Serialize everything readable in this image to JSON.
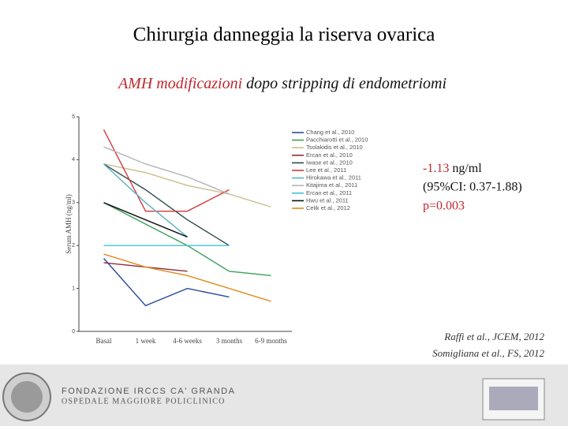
{
  "title": "Chirurgia danneggia la riserva ovarica",
  "subtitle": {
    "highlight": "AMH modificazioni",
    "rest": "dopo stripping di endometriomi"
  },
  "chart_data": {
    "type": "line",
    "y_label": "Serum AMH (ng/ml)",
    "categories": [
      "Basal",
      "1 week",
      "4-6 weeks",
      "3 months",
      "6-9 months"
    ],
    "ylim": [
      0,
      5
    ],
    "yticks": [
      0,
      1,
      2,
      3,
      4,
      5
    ],
    "series": [
      {
        "name": "Chang et al., 2010",
        "color": "#2a4a9a",
        "values": [
          1.7,
          0.6,
          1.0,
          0.8,
          null
        ]
      },
      {
        "name": "Pacchiarotti et al., 2010",
        "color": "#3aa05a",
        "values": [
          3.0,
          2.5,
          2.0,
          1.4,
          1.3
        ]
      },
      {
        "name": "Tsolakidis et al., 2010",
        "color": "#cdbd8c",
        "values": [
          3.9,
          3.7,
          3.4,
          3.2,
          2.9
        ]
      },
      {
        "name": "Ercan et al., 2010",
        "color": "#8b2d3a",
        "values": [
          1.6,
          1.5,
          1.4,
          null,
          null
        ]
      },
      {
        "name": "Iwase et al., 2010",
        "color": "#2e4a4a",
        "values": [
          3.9,
          3.3,
          2.6,
          2.0,
          null
        ]
      },
      {
        "name": "Lee et al., 2011",
        "color": "#d23a3a",
        "values": [
          4.7,
          2.8,
          2.8,
          3.3,
          null
        ]
      },
      {
        "name": "Hirokawa et al., 2011",
        "color": "#5ab0c8",
        "values": [
          3.9,
          3.0,
          2.2,
          null,
          null
        ]
      },
      {
        "name": "Kitajima et al., 2011",
        "color": "#b4b4bc",
        "values": [
          4.3,
          3.9,
          3.6,
          3.2,
          null
        ]
      },
      {
        "name": "Ercan et al., 2011",
        "color": "#40c4d8",
        "values": [
          2.0,
          2.0,
          2.0,
          2.0,
          null
        ]
      },
      {
        "name": "Hwu et al., 2011",
        "color": "#111111",
        "values": [
          3.0,
          2.6,
          2.2,
          null,
          null
        ]
      },
      {
        "name": "Celik et al., 2012",
        "color": "#e08a20",
        "values": [
          1.8,
          1.5,
          1.3,
          1.0,
          0.7
        ]
      }
    ]
  },
  "result": {
    "estimate": "-1.13",
    "unit": "ng/ml",
    "ci": "(95%CI: 0.37-1.88)",
    "p": "p=0.003"
  },
  "references": [
    "Raffi et al., JCEM, 2012",
    "Somigliana et al., FS, 2012"
  ],
  "footer": {
    "line1": "FONDAZIONE IRCCS CA' GRANDA",
    "line2": "OSPEDALE MAGGIORE POLICLINICO"
  }
}
